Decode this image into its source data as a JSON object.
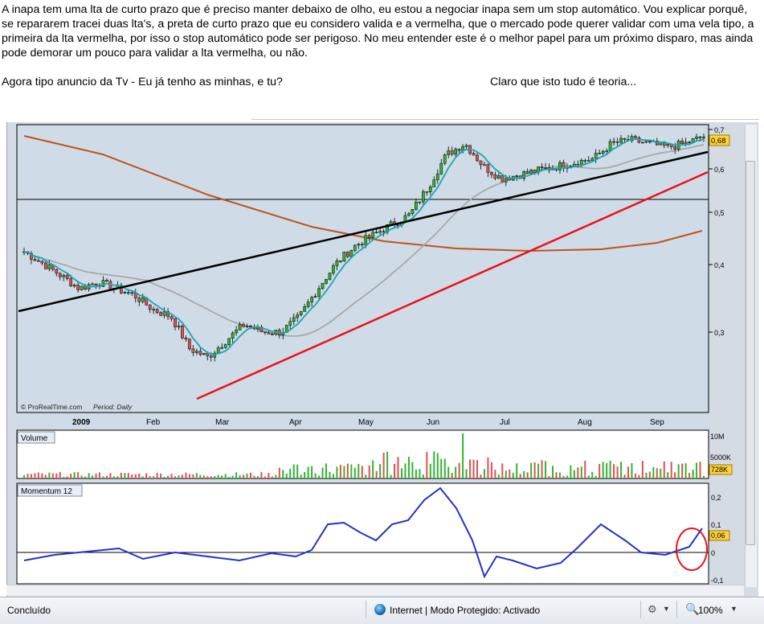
{
  "post": {
    "paragraph1": "A inapa tem uma lta de curto prazo que é preciso manter debaixo de olho, eu estou a negociar inapa sem um stop automático. Vou explicar porquê, se repararem tracei duas lta's, a preta de curto prazo que eu considero valida e a vermelha, que o mercado pode querer validar com uma vela tipo, a primeira da lta vermelha, por isso o stop automático pode ser perigoso. No meu entender este é o melhor papel para um próximo disparo, mas ainda pode demorar um pouco para validar a lta vermelha, ou não.",
    "paragraph2": "Agora tipo anuncio da Tv - Eu já tenho as minhas, e tu?",
    "paragraph2_right": "Claro que isto tudo é teoria..."
  },
  "chart": {
    "credit": "© ProRealTime.com",
    "period_label": "Period: Daily",
    "year_label": "2009",
    "months": [
      "Feb",
      "Mar",
      "Apr",
      "May",
      "Jun",
      "Jul",
      "Aug",
      "Sep"
    ],
    "price_ticks": [
      "0,7",
      "0,6",
      "0,5",
      "0,4",
      "0,3"
    ],
    "last_price": "0,68",
    "volume_title": "Volume",
    "volume_ticks": [
      "10M",
      "5000K"
    ],
    "last_volume": "728K",
    "momentum_title": "Momentum 12",
    "momentum_ticks": [
      "0,2",
      "0,1",
      "0",
      "-0,1"
    ],
    "last_momentum": "0,06",
    "colors": {
      "up": "#2fb52f",
      "down": "#e05050",
      "ma_short": "#16a7b5",
      "ma_mid": "#a8a8a8",
      "ma_long": "#c0521b",
      "lta_black": "#000000",
      "lta_red": "#e8141c",
      "momentum": "#2233c8",
      "badge": "#ffd23c"
    }
  },
  "chart_data": [
    {
      "type": "line",
      "title": "",
      "series": [
        {
          "name": "price",
          "values": [
            0.42,
            0.4,
            0.38,
            0.36,
            0.37,
            0.36,
            0.35,
            0.33,
            0.32,
            0.28,
            0.27,
            0.29,
            0.31,
            0.3,
            0.3,
            0.32,
            0.36,
            0.4,
            0.43,
            0.45,
            0.47,
            0.49,
            0.55,
            0.63,
            0.66,
            0.6,
            0.57,
            0.58,
            0.59,
            0.6,
            0.61,
            0.62,
            0.66,
            0.67,
            0.66,
            0.65,
            0.66,
            0.68
          ]
        }
      ],
      "ylim": [
        0.25,
        0.71
      ]
    },
    {
      "type": "bar",
      "title": "Volume",
      "ylim": [
        0,
        12000000
      ]
    },
    {
      "type": "line",
      "title": "Momentum 12",
      "ylim": [
        -0.1,
        0.22
      ],
      "last_value": 0.06
    }
  ],
  "statusbar": {
    "status": "Concluído",
    "zone": "Internet | Modo Protegido: Activado",
    "zoom": "100%"
  }
}
